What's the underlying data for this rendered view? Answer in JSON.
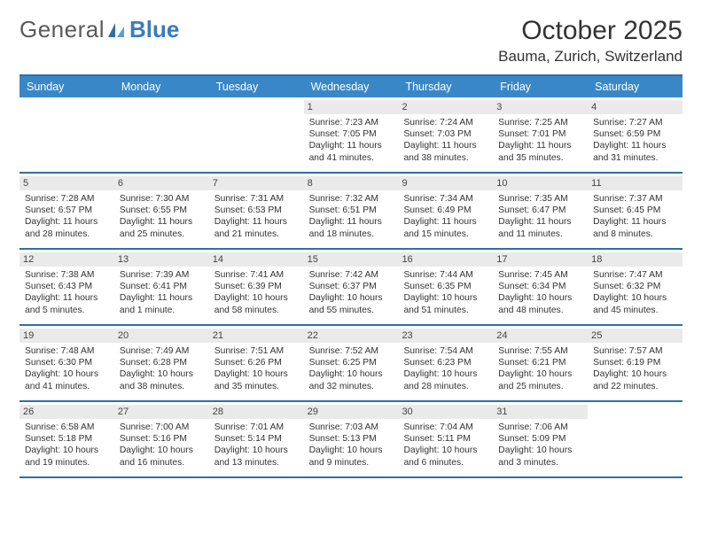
{
  "brand": {
    "word1": "General",
    "word2": "Blue"
  },
  "title": "October 2025",
  "location": "Bauma, Zurich, Switzerland",
  "colors": {
    "header_bg": "#3a87c7",
    "rule": "#2f6fa9",
    "daynum_bg": "#eaeaea"
  },
  "weekdays": [
    "Sunday",
    "Monday",
    "Tuesday",
    "Wednesday",
    "Thursday",
    "Friday",
    "Saturday"
  ],
  "weeks": [
    [
      {
        "blank": true
      },
      {
        "blank": true
      },
      {
        "blank": true
      },
      {
        "n": "1",
        "sr": "7:23 AM",
        "ss": "7:05 PM",
        "dl": "11 hours and 41 minutes."
      },
      {
        "n": "2",
        "sr": "7:24 AM",
        "ss": "7:03 PM",
        "dl": "11 hours and 38 minutes."
      },
      {
        "n": "3",
        "sr": "7:25 AM",
        "ss": "7:01 PM",
        "dl": "11 hours and 35 minutes."
      },
      {
        "n": "4",
        "sr": "7:27 AM",
        "ss": "6:59 PM",
        "dl": "11 hours and 31 minutes."
      }
    ],
    [
      {
        "n": "5",
        "sr": "7:28 AM",
        "ss": "6:57 PM",
        "dl": "11 hours and 28 minutes."
      },
      {
        "n": "6",
        "sr": "7:30 AM",
        "ss": "6:55 PM",
        "dl": "11 hours and 25 minutes."
      },
      {
        "n": "7",
        "sr": "7:31 AM",
        "ss": "6:53 PM",
        "dl": "11 hours and 21 minutes."
      },
      {
        "n": "8",
        "sr": "7:32 AM",
        "ss": "6:51 PM",
        "dl": "11 hours and 18 minutes."
      },
      {
        "n": "9",
        "sr": "7:34 AM",
        "ss": "6:49 PM",
        "dl": "11 hours and 15 minutes."
      },
      {
        "n": "10",
        "sr": "7:35 AM",
        "ss": "6:47 PM",
        "dl": "11 hours and 11 minutes."
      },
      {
        "n": "11",
        "sr": "7:37 AM",
        "ss": "6:45 PM",
        "dl": "11 hours and 8 minutes."
      }
    ],
    [
      {
        "n": "12",
        "sr": "7:38 AM",
        "ss": "6:43 PM",
        "dl": "11 hours and 5 minutes."
      },
      {
        "n": "13",
        "sr": "7:39 AM",
        "ss": "6:41 PM",
        "dl": "11 hours and 1 minute."
      },
      {
        "n": "14",
        "sr": "7:41 AM",
        "ss": "6:39 PM",
        "dl": "10 hours and 58 minutes."
      },
      {
        "n": "15",
        "sr": "7:42 AM",
        "ss": "6:37 PM",
        "dl": "10 hours and 55 minutes."
      },
      {
        "n": "16",
        "sr": "7:44 AM",
        "ss": "6:35 PM",
        "dl": "10 hours and 51 minutes."
      },
      {
        "n": "17",
        "sr": "7:45 AM",
        "ss": "6:34 PM",
        "dl": "10 hours and 48 minutes."
      },
      {
        "n": "18",
        "sr": "7:47 AM",
        "ss": "6:32 PM",
        "dl": "10 hours and 45 minutes."
      }
    ],
    [
      {
        "n": "19",
        "sr": "7:48 AM",
        "ss": "6:30 PM",
        "dl": "10 hours and 41 minutes."
      },
      {
        "n": "20",
        "sr": "7:49 AM",
        "ss": "6:28 PM",
        "dl": "10 hours and 38 minutes."
      },
      {
        "n": "21",
        "sr": "7:51 AM",
        "ss": "6:26 PM",
        "dl": "10 hours and 35 minutes."
      },
      {
        "n": "22",
        "sr": "7:52 AM",
        "ss": "6:25 PM",
        "dl": "10 hours and 32 minutes."
      },
      {
        "n": "23",
        "sr": "7:54 AM",
        "ss": "6:23 PM",
        "dl": "10 hours and 28 minutes."
      },
      {
        "n": "24",
        "sr": "7:55 AM",
        "ss": "6:21 PM",
        "dl": "10 hours and 25 minutes."
      },
      {
        "n": "25",
        "sr": "7:57 AM",
        "ss": "6:19 PM",
        "dl": "10 hours and 22 minutes."
      }
    ],
    [
      {
        "n": "26",
        "sr": "6:58 AM",
        "ss": "5:18 PM",
        "dl": "10 hours and 19 minutes."
      },
      {
        "n": "27",
        "sr": "7:00 AM",
        "ss": "5:16 PM",
        "dl": "10 hours and 16 minutes."
      },
      {
        "n": "28",
        "sr": "7:01 AM",
        "ss": "5:14 PM",
        "dl": "10 hours and 13 minutes."
      },
      {
        "n": "29",
        "sr": "7:03 AM",
        "ss": "5:13 PM",
        "dl": "10 hours and 9 minutes."
      },
      {
        "n": "30",
        "sr": "7:04 AM",
        "ss": "5:11 PM",
        "dl": "10 hours and 6 minutes."
      },
      {
        "n": "31",
        "sr": "7:06 AM",
        "ss": "5:09 PM",
        "dl": "10 hours and 3 minutes."
      },
      {
        "blank": true
      }
    ]
  ],
  "labels": {
    "sunrise": "Sunrise: ",
    "sunset": "Sunset: ",
    "daylight": "Daylight: "
  }
}
